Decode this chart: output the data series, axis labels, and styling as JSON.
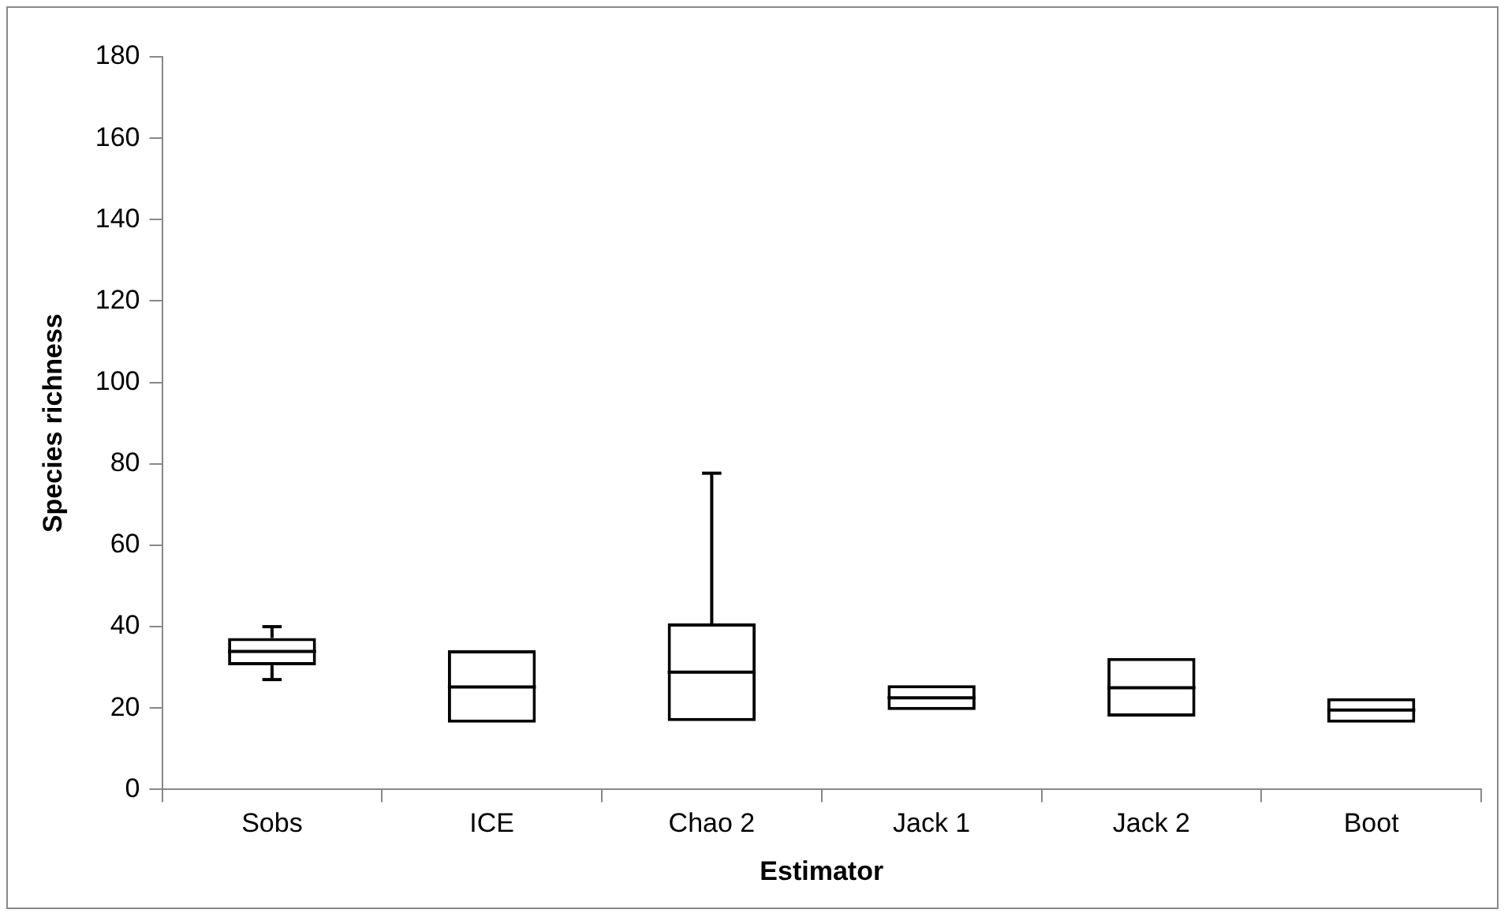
{
  "chart_data": {
    "type": "box",
    "xlabel": "Estimator",
    "ylabel": "Species richness",
    "categories": [
      "Sobs",
      "ICE",
      "Chao 2",
      "Jack 1",
      "Jack 2",
      "Boot"
    ],
    "color": "#000000",
    "boxes": [
      {
        "low": 27,
        "q1": 30.5,
        "median": 33.9,
        "q3": 37.2,
        "high": 40
      },
      {
        "low": 16.4,
        "q1": 16.4,
        "median": 25.2,
        "q3": 34.2,
        "high": 34.2
      },
      {
        "low": 16.8,
        "q1": 16.8,
        "median": 28.8,
        "q3": 40.8,
        "high": 77.7
      },
      {
        "low": 19.5,
        "q1": 19.5,
        "median": 22.5,
        "q3": 25.6,
        "high": 25.6
      },
      {
        "low": 17.9,
        "q1": 17.9,
        "median": 25,
        "q3": 32.3,
        "high": 32.3
      },
      {
        "low": 16.4,
        "q1": 16.4,
        "median": 19.5,
        "q3": 22.4,
        "high": 22.4
      }
    ],
    "ylim": [
      0,
      180
    ],
    "yticks": [
      0,
      20,
      40,
      60,
      80,
      100,
      120,
      140,
      160,
      180
    ],
    "grid": false
  }
}
